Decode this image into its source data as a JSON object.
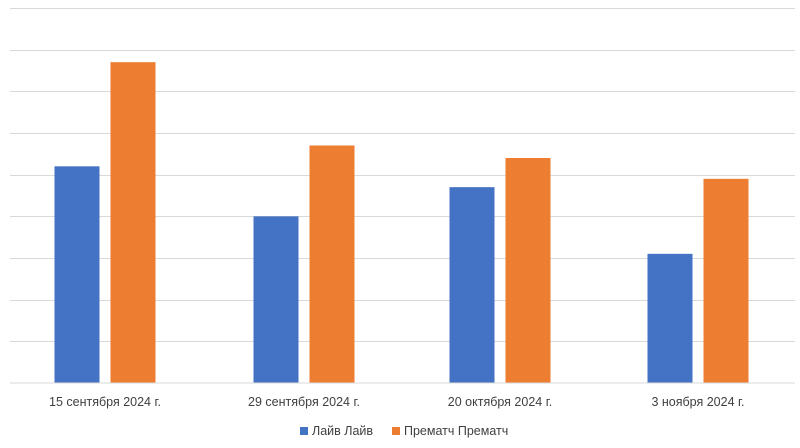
{
  "chart_data": {
    "type": "bar",
    "categories": [
      "15 сентября 2024 г.",
      "29 сентября 2024 г.",
      "20 октября 2024 г.",
      "3 ноября 2024 г."
    ],
    "series": [
      {
        "name": "Лайв Лайв",
        "color": "#4472c4",
        "values": [
          5.2,
          4.0,
          4.7,
          3.1
        ]
      },
      {
        "name": "Прематч Прематч",
        "color": "#ed7d31",
        "values": [
          7.7,
          5.7,
          5.4,
          4.9
        ]
      }
    ],
    "ylim": [
      0,
      9
    ],
    "y_gridline_step": 1,
    "grid": true,
    "y_tick_labels_visible": false,
    "legend_position": "bottom-center",
    "title": "",
    "xlabel": "",
    "ylabel": ""
  }
}
